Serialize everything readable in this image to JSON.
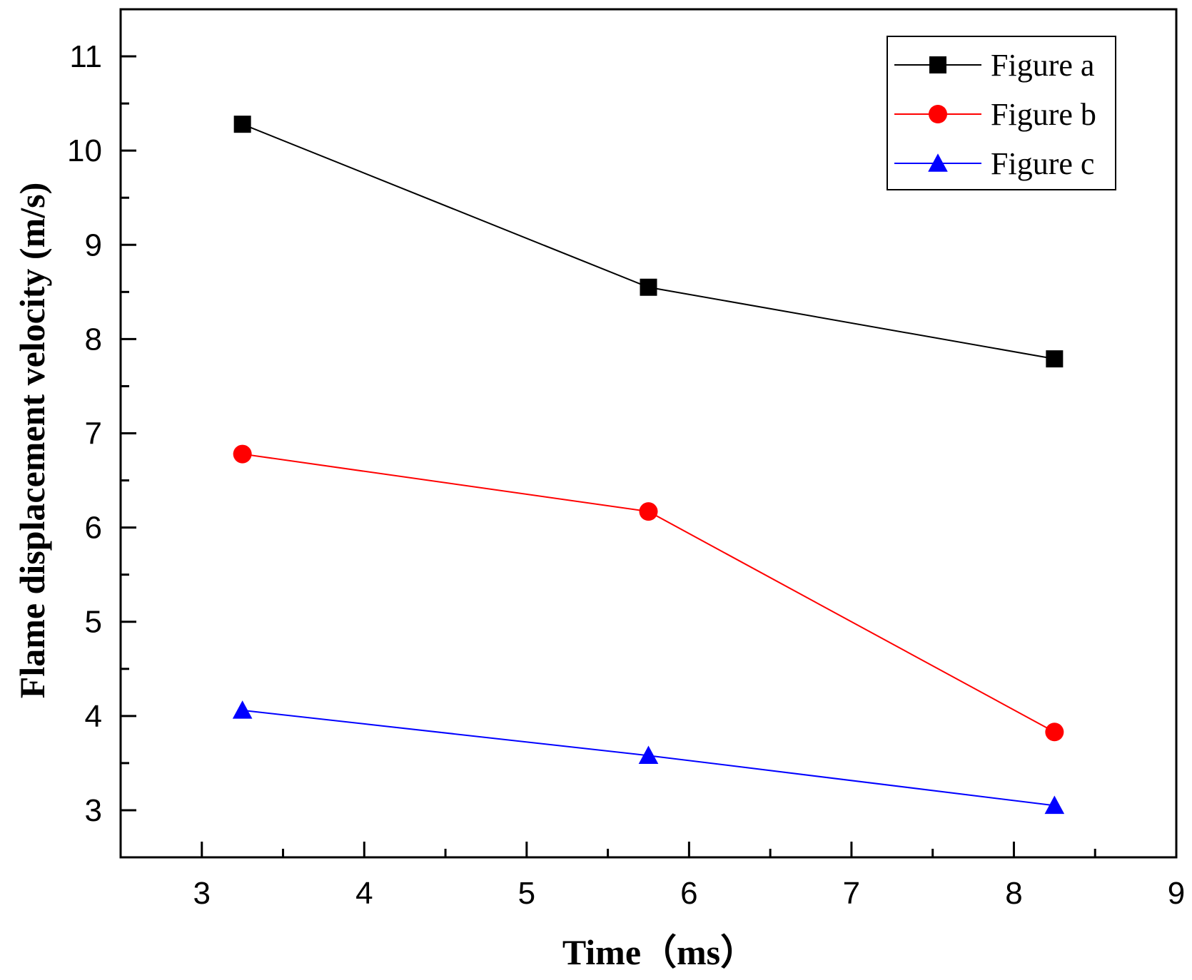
{
  "chart_data": {
    "type": "line",
    "title": "",
    "xlabel": "Time（ms）",
    "ylabel": "Flame displacement velocity (m/s)",
    "xlim": [
      2.5,
      9
    ],
    "ylim": [
      2.5,
      11.5
    ],
    "xticks": [
      3,
      4,
      5,
      6,
      7,
      8,
      9
    ],
    "yticks": [
      3,
      4,
      5,
      6,
      7,
      8,
      9,
      10,
      11
    ],
    "x": [
      3.25,
      5.75,
      8.25
    ],
    "legend_position": "top-right",
    "grid": false,
    "series": [
      {
        "name": "Figure a",
        "values": [
          10.28,
          8.55,
          7.79
        ],
        "color": "#000000",
        "marker": "square"
      },
      {
        "name": "Figure b",
        "values": [
          6.78,
          6.17,
          3.83
        ],
        "color": "#ff0000",
        "marker": "circle"
      },
      {
        "name": "Figure c",
        "values": [
          4.06,
          3.58,
          3.05
        ],
        "color": "#0000ff",
        "marker": "triangle"
      }
    ]
  }
}
